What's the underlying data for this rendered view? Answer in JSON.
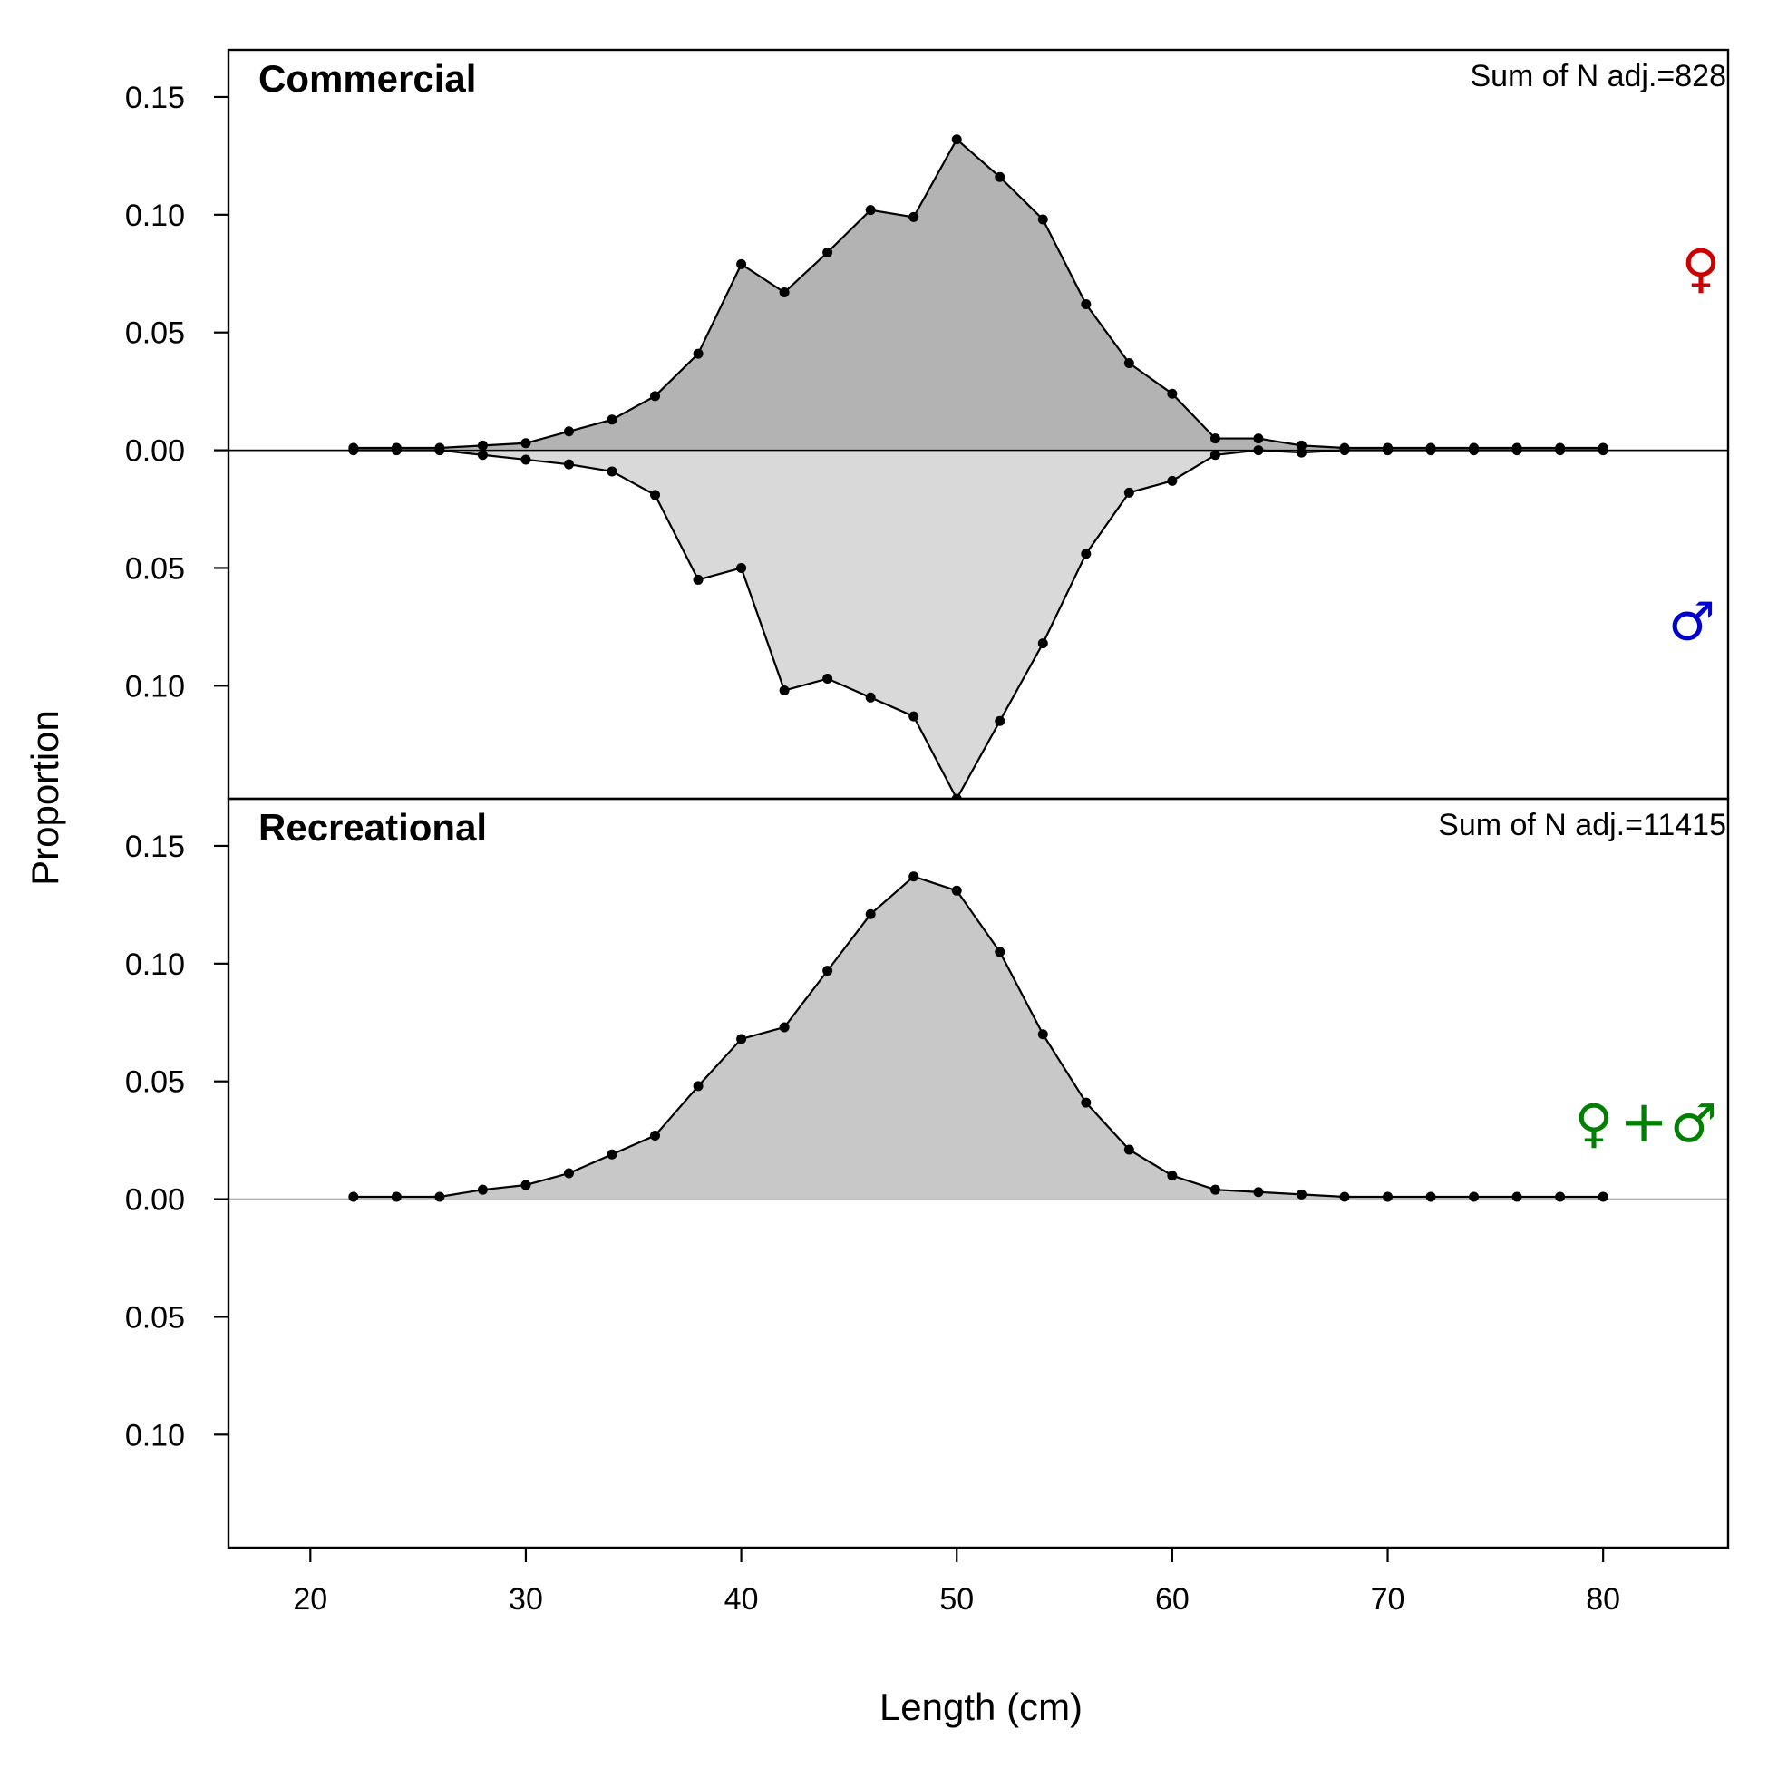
{
  "chart_data": {
    "type": "area",
    "xlabel": "Length (cm)",
    "ylabel": "Proportion",
    "xlim": [
      16.2,
      85.8
    ],
    "x_ticks": [
      "20",
      "30",
      "40",
      "50",
      "60",
      "70",
      "80"
    ],
    "x_tick_values": [
      20,
      30,
      40,
      50,
      60,
      70,
      80
    ],
    "y_tick_values": [
      0.15,
      0.1,
      0.05,
      0.0,
      -0.05,
      -0.1
    ],
    "y_ticks": [
      "0.15",
      "0.10",
      "0.05",
      "0.00",
      "0.05",
      "0.10"
    ],
    "ylim": [
      -0.148,
      0.17
    ],
    "grid": false,
    "panels": [
      {
        "title": "Commercial",
        "note": "Sum of N adj.=828",
        "sex_symbols": [
          "♀",
          "♂"
        ],
        "sex_colors": [
          "#cc0000",
          "#0000cc"
        ],
        "series": [
          {
            "sex": "female",
            "color": "#b3b3b3",
            "x": [
              22,
              24,
              26,
              28,
              30,
              32,
              34,
              36,
              38,
              40,
              42,
              44,
              46,
              48,
              50,
              52,
              54,
              56,
              58,
              60,
              62,
              64,
              66,
              68,
              70,
              72,
              74,
              76,
              78,
              80
            ],
            "values": [
              0.001,
              0.001,
              0.001,
              0.002,
              0.003,
              0.008,
              0.013,
              0.023,
              0.041,
              0.079,
              0.067,
              0.084,
              0.102,
              0.099,
              0.132,
              0.116,
              0.098,
              0.062,
              0.037,
              0.024,
              0.005,
              0.005,
              0.002,
              0.001,
              0.001,
              0.001,
              0.001,
              0.001,
              0.001,
              0.001
            ]
          },
          {
            "sex": "male",
            "color": "#d9d9d9",
            "x": [
              22,
              24,
              26,
              28,
              30,
              32,
              34,
              36,
              38,
              40,
              42,
              44,
              46,
              48,
              50,
              52,
              54,
              56,
              58,
              60,
              62,
              64,
              66,
              68,
              70,
              72,
              74,
              76,
              78,
              80
            ],
            "values": [
              0.0,
              0.0,
              0.0,
              0.002,
              0.004,
              0.006,
              0.009,
              0.019,
              0.055,
              0.05,
              0.102,
              0.097,
              0.105,
              0.113,
              0.148,
              0.115,
              0.082,
              0.044,
              0.018,
              0.013,
              0.002,
              0.0,
              0.001,
              0.0,
              0.0,
              0.0,
              0.0,
              0.0,
              0.0,
              0.0
            ]
          }
        ]
      },
      {
        "title": "Recreational",
        "note": "Sum of N adj.=11415",
        "sex_symbols": [
          "♀",
          "+",
          "♂"
        ],
        "sex_colors": [
          "#008000",
          "#008000",
          "#008000"
        ],
        "series": [
          {
            "sex": "combined",
            "color": "#c8c8c8",
            "x": [
              22,
              24,
              26,
              28,
              30,
              32,
              34,
              36,
              38,
              40,
              42,
              44,
              46,
              48,
              50,
              52,
              54,
              56,
              58,
              60,
              62,
              64,
              66,
              68,
              70,
              72,
              74,
              76,
              78,
              80
            ],
            "values": [
              0.001,
              0.001,
              0.001,
              0.004,
              0.006,
              0.011,
              0.019,
              0.027,
              0.048,
              0.068,
              0.073,
              0.097,
              0.121,
              0.137,
              0.131,
              0.105,
              0.07,
              0.041,
              0.021,
              0.01,
              0.004,
              0.003,
              0.002,
              0.001,
              0.001,
              0.001,
              0.001,
              0.001,
              0.001,
              0.001
            ]
          }
        ]
      }
    ]
  }
}
